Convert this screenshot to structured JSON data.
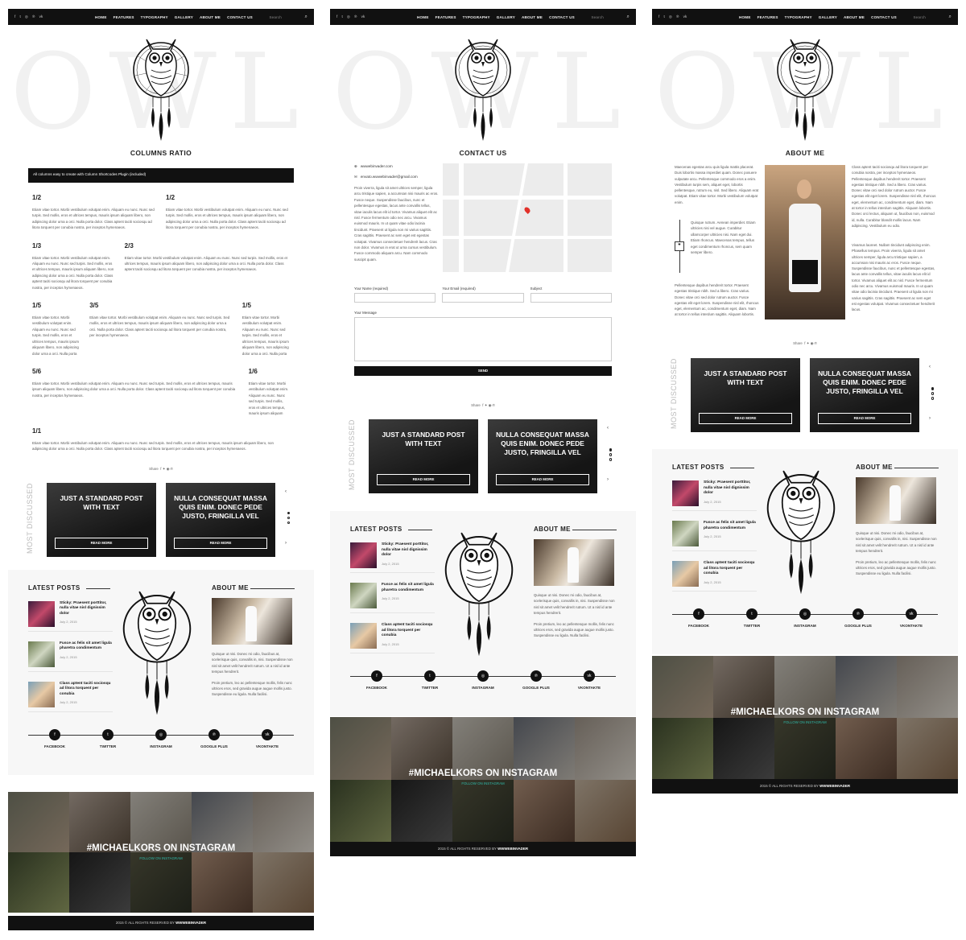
{
  "nav": {
    "social": [
      "f",
      "t",
      "◎",
      "℗",
      "vk"
    ],
    "menu": [
      "HOME",
      "FEATURES",
      "TYPOGRAPHY",
      "GALLERY",
      "ABOUT ME",
      "CONTACT US"
    ],
    "search_placeholder": "Search"
  },
  "header": {
    "bg_text": "OWL"
  },
  "columns_page": {
    "title": "COLUMNS RATIO",
    "notice": "All columns easy to create with Column Shortcodes Plugin (included)",
    "sections": [
      {
        "cols": [
          {
            "label": "1/2"
          },
          {
            "label": "1/2"
          }
        ]
      },
      {
        "cols": [
          {
            "label": "1/3"
          },
          {
            "label": "2/3"
          }
        ]
      },
      {
        "cols": [
          {
            "label": "1/5"
          },
          {
            "label": "3/5"
          },
          {
            "label": "1/5"
          }
        ]
      },
      {
        "cols": [
          {
            "label": "5/6"
          },
          {
            "label": "1/6"
          }
        ]
      },
      {
        "cols": [
          {
            "label": "1/1"
          }
        ]
      }
    ],
    "lorem": "Etiam vitae tortor. Morbi vestibulum volutpat enim. Aliquam eu nunc. Nunc sed turpis. Sed mollis, eros et ultrices tempus, mauris ipsum aliquam libero, non adipiscing dolor urna a orci. Nulla porta dolor. Class aptent taciti sociosqu ad litora torquent per conubia nostra, per inceptos hymenaeos."
  },
  "share_label": "Share",
  "most_discussed": {
    "label": "MOST DISCUSSED",
    "cards": [
      {
        "title": "JUST A STANDARD POST WITH TEXT",
        "button": "READ MORE"
      },
      {
        "title": "NULLA CONSEQUAT MASSA QUIS ENIM. DONEC PEDE JUSTO, FRINGILLA VEL",
        "button": "READ MORE"
      }
    ]
  },
  "latest_posts": {
    "title": "LATEST POSTS",
    "items": [
      {
        "title": "Sticky: Praesent porttitor, nulla vitae nisl dignissim dolor",
        "date": "July 2, 2015"
      },
      {
        "title": "Fusce ac felis sit amet ligula pharetra condimentum",
        "date": "July 2, 2015"
      },
      {
        "title": "Class aptent taciti sociosqu ad litora torquent per conubia",
        "date": "July 2, 2015"
      }
    ]
  },
  "about_me": {
    "title": "ABOUT ME",
    "text1": "Quisque ut nisi. Donec mi odio, faucibus at, scelerisque quis, convallis in, nisi. Suspendisse non nisl sit amet velit hendrerit rutrum. Ut a nisl id ante tempus hendrerit.",
    "text2": "Proin pretium, leo ac pellentesque mollis, felis nunc ultrices eros, sed gravida augue augue mollis justo. Suspendisse eu ligula. Nulla facilisi."
  },
  "social_links": [
    {
      "label": "FACEBOOK",
      "icon": "f"
    },
    {
      "label": "TWITTER",
      "icon": "t"
    },
    {
      "label": "INSTAGRAM",
      "icon": "◎"
    },
    {
      "label": "GOOGLE PLUS",
      "icon": "℗"
    },
    {
      "label": "VKONTAKTE",
      "icon": "vk"
    }
  ],
  "instagram": {
    "title": "#MICHAELKORS ON INSTAGRAM",
    "follow": "FOLLOW ON INSTAGRAM"
  },
  "copyright": {
    "text": "2015 © ALL RIGHTS RESERVED BY",
    "brand": "WWWEBINVADER"
  },
  "contact_page": {
    "title": "CONTACT US",
    "site": "wwwebinvader.com",
    "email": "envato.wwwebinvader@gmail.com",
    "intro": "Proin viverra, ligula sit amet ultrices semper, ligula arcu tristique sapien, a accumsan nisi mauris ac eros. Fusce neque. Suspendisse faucibus, nunc et pellentesque egestas, lacus ante convallis tellus, vitae iaculis lacus elit id tortor. Vivamus aliquet elit ac nisl. Fusce fermentum odio nec arcu. Vivamus euismod mauris. In ut quam vitae odio lacinia tincidunt. Praesent ut ligula non mi varius sagittis. Cras sagittis. Praesent ac sem eget est egestas volutpat. Vivamus consectetuer hendrerit lacus. Cras non dolor. Vivamus in erat ut urna cursus vestibulum. Fusce commodo aliquam arcu. Nam commodo suscipit quam.",
    "fields": {
      "name": "Your Name (required)",
      "email": "Your Email (required)",
      "subject": "Subject",
      "message": "Your Message"
    },
    "send": "SEND"
  },
  "about_page": {
    "title": "ABOUT ME",
    "left": "Maecenas egestas arcu quis ligula mattis placerat. Duis lobortis massa imperdiet quam. Donec posuere vulputate arcu. Pellentesque commodo eros a enim. Vestibulum turpis sem, aliquet eget, lobortis pellentesque, rutrum eu, nisl. Sed libero. Aliquam erat volutpat. Etiam vitae tortor. Morbi vestibulum volutpat enim.",
    "quote": "Quisque rutrum. Aenean imperdiet. Etiam ultricies nisi vel augue. Curabitur ullamcorper ultricies nisi. Nam eget dui. Etiam rhoncus. Maecenas tempus, tellus eget condimentum rhoncus, sem quam semper libero.",
    "left2": "Pellentesque dapibus hendrerit tortor. Praesent egestas tristique nibh. Sed a libero. Cras varius. Donec vitae orci sed dolor rutrum auctor. Fusce egestas elit eget lorem. Suspendisse nisl elit, rhoncus eget, elementum ac, condimentum eget, diam. Nam at tortor in tellus interdum sagittis. Aliquam lobortis.",
    "right": "Class aptent taciti sociosqu ad litora torquent per conubia nostra, per inceptos hymenaeos. Pellentesque dapibus hendrerit tortor. Praesent egestas tristique nibh. Sed a libero. Cras varius. Donec vitae orci sed dolor rutrum auctor. Fusce egestas elit eget lorem. Suspendisse nisl elit, rhoncus eget, elementum ac, condimentum eget, diam. Nam at tortor in tellus interdum sagittis. Aliquam lobortis. Donec orci lectus, aliquam ut, faucibus non, euismod id, nulla. Curabitur blandit mollis lacus. Nam adipiscing. Vestibulum eu odio.",
    "right2": "Vivamus laoreet. Nullam tincidunt adipiscing enim. Phasellus tempus. Proin viverra, ligula sit amet ultrices semper, ligula arcu tristique sapien, a accumsan nisi mauris ac eros. Fusce neque. Suspendisse faucibus, nunc et pellentesque egestas, lacus ante convallis tellus, vitae iaculis lacus elit id tortor. Vivamus aliquet elit ac nisl. Fusce fermentum odio nec arcu. Vivamus euismod mauris. In ut quam vitae odio lacinia tincidunt. Praesent ut ligula non mi varius sagittis. Cras sagittis. Praesent ac sem eget est egestas volutpat. Vivamus consectetuer hendrerit lacus."
  }
}
